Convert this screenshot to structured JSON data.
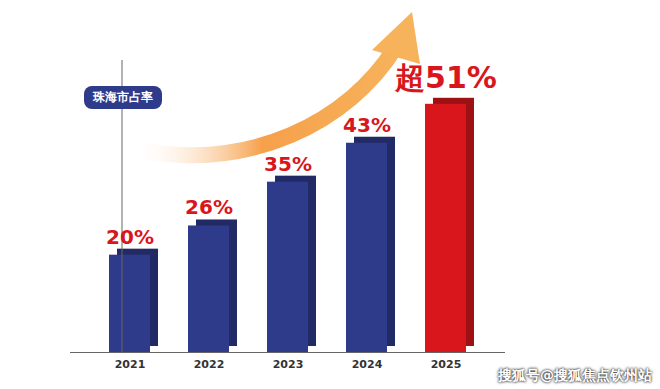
{
  "chart_data": {
    "type": "bar",
    "title": "珠海市占率",
    "categories": [
      "2021",
      "2022",
      "2023",
      "2024",
      "2025"
    ],
    "values": [
      20,
      26,
      35,
      43,
      51
    ],
    "value_labels": [
      "20%",
      "26%",
      "35%",
      "43%",
      "超51%"
    ],
    "colors": [
      "#2e3a8a",
      "#2e3a8a",
      "#2e3a8a",
      "#2e3a8a",
      "#d9161c"
    ],
    "ylim": [
      0,
      60
    ],
    "yticks": [],
    "grid": false,
    "data_labels": true,
    "tick_labels": "x",
    "annotations": [
      "搜狐号@搜狐焦点钦州站"
    ]
  }
}
